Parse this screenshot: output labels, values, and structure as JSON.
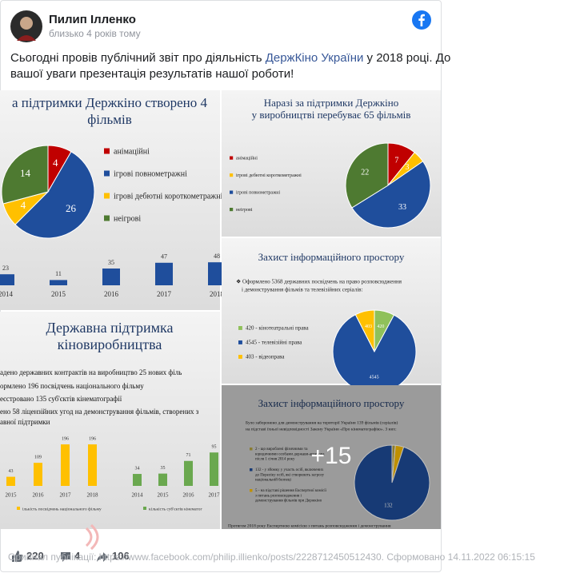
{
  "post": {
    "author": "Пилип Ілленко",
    "time": "близько 4 років тому",
    "text_parts": [
      "Сьогодні провів публічний звіт про діяльність ",
      "ДержКіно України",
      " у 2018 році. До",
      "вашої уваги презентація результатів нашої роботи!"
    ]
  },
  "slides": [
    {
      "title": [
        "а підтримки Держкіно створено 4",
        "фільмів"
      ],
      "pie": {
        "values": [
          4,
          26,
          4,
          14
        ],
        "colors": [
          "#c00000",
          "#1f4e9c",
          "#ffc000",
          "#4e7a31"
        ]
      },
      "legend": [
        "анімаційні",
        "ігрові повнометражні",
        "ігрові дебютні короткометражні",
        "неігрові"
      ],
      "bars": [
        {
          "categories": [
            "2014",
            "2015",
            "2016",
            "2017",
            "2018"
          ],
          "values": [
            23,
            11,
            35,
            47,
            48
          ],
          "color": "#1f4e9c"
        }
      ]
    },
    {
      "title": [
        "Наразі за підтримки Держкіно",
        "у виробництві перебуває 65 фільмів"
      ],
      "pie": {
        "values": [
          7,
          3,
          33,
          22
        ],
        "colors": [
          "#c00000",
          "#ffc000",
          "#1f4e9c",
          "#4e7a31"
        ]
      },
      "legend": [
        "анімаційні",
        "ігрові дебютні короткометражні",
        "ігрові повнометражні",
        "неігрові"
      ],
      "legend_colors": [
        "#c00000",
        "#ffc000",
        "#1f4e9c",
        "#4e7a31"
      ]
    },
    {
      "title": [
        "Захист інформаційного простору"
      ],
      "text": [
        "❖ Оформлено 5368 державних посвідчень на право розповсюдження",
        "і демонстрування фільмів та телевізійних серіалів:"
      ],
      "pie": {
        "values": [
          420,
          4545,
          403
        ],
        "colors": [
          "#8fc15a",
          "#1f4e9c",
          "#ffc000"
        ]
      },
      "legend": [
        "420 - кінотеатральні права",
        "4545 - телевізійні права",
        "403 - відеоправа"
      ]
    },
    {
      "title": [
        "Державна підтримка",
        "кіновиробництва"
      ],
      "text": [
        "адено державних контрактів на виробництво 25 нових філь",
        "ормлено 196 посвідчень національного фільму",
        "еєстровано 135 суб'єктів кінематографії",
        "ено 58 ліцензійних угод на демонстрування фільмів, створених з",
        "авної підтримки"
      ],
      "bars": [
        {
          "categories": [
            "2015",
            "2016",
            "2017",
            "2018"
          ],
          "values": [
            43,
            109,
            196,
            196
          ],
          "color": "#ffc000",
          "legend": "ількість посвідчень національного фільму"
        },
        {
          "categories": [
            "2014",
            "2015",
            "2016",
            "2017"
          ],
          "values": [
            34,
            35,
            71,
            95
          ],
          "color": "#6aa84f",
          "legend": "кількість суб'єктів кінематог"
        }
      ]
    },
    {
      "title": [
        "Захист інформаційного простору"
      ],
      "text": [
        "Було заборонено для демонстрування на території України 139 фільмів (серіалів)",
        "на підставі їхньої невідповідності Закону України «Про кінематографію». З них:"
      ],
      "pie": {
        "values": [
          2,
          5,
          132
        ],
        "colors": [
          "#b8a640",
          "#ffc000",
          "#1f4e9c"
        ]
      },
      "legend": [
        [
          "2 - що вироблені фізичними та",
          "юридичними особами держави-агресора",
          "після 1 січня 2014 року"
        ],
        [
          "132 - у зйомку у участь осіб, включених",
          "до Переліку осіб, які створюють загрозу",
          "національній безпеці"
        ],
        [
          "5 - на підставі рішення Експертної комісії",
          "з питань розповсюдження і",
          "демонстрування фільмів при Держкіно"
        ]
      ],
      "legend_colors": [
        "#b8a640",
        "#1f4e9c",
        "#ffc000"
      ],
      "footer": "Протягом 2018 року Експертною комісією з питань розповсюдження і демонстрування"
    }
  ],
  "more_count": "+15",
  "reactions": {
    "likes": 220,
    "comments": 4,
    "shares": 106
  },
  "footer": "Оригінал публікації: https://www.facebook.com/philip.illienko/posts/2228712450512430. Сформовано 14.11.2022 06:15:15"
}
